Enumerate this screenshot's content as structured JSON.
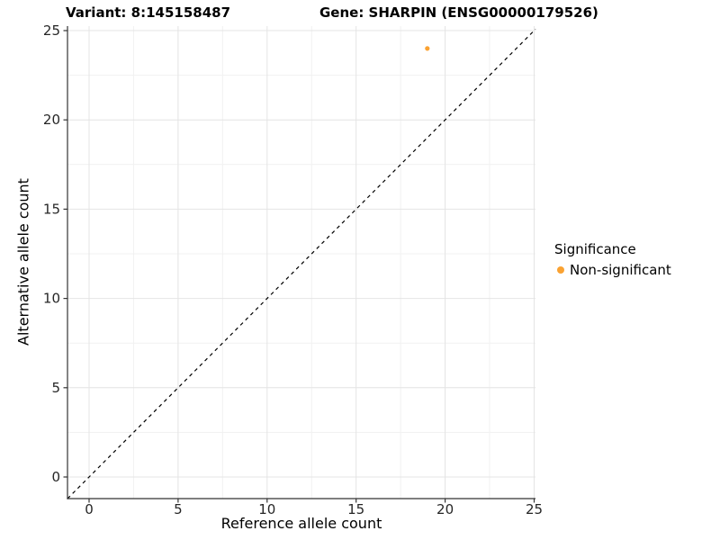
{
  "header": {
    "variant_title": "Variant: 8:145158487",
    "gene_title": "Gene: SHARPIN (ENSG00000179526)"
  },
  "legend": {
    "title": "Significance",
    "items": [
      {
        "label": "Non-significant",
        "color": "#FAA232",
        "marker": "circle-icon"
      }
    ]
  },
  "chart_data": {
    "type": "scatter",
    "title": "Variant: 8:145158487   |   Gene: SHARPIN (ENSG00000179526)",
    "xlabel": "Reference allele count",
    "ylabel": "Alternative allele count",
    "xlim": [
      -1.213,
      25.076
    ],
    "ylim": [
      -1.21,
      25.252
    ],
    "x_ticks": [
      0,
      5,
      10,
      15,
      20,
      25
    ],
    "y_ticks": [
      0,
      5,
      10,
      15,
      20,
      25
    ],
    "minor_grid_step": 2.5,
    "grid": "major+minor",
    "legend_position": "right",
    "series": [
      {
        "name": "Non-significant",
        "color": "#FAA232",
        "point_radius": 2.6,
        "points": [
          {
            "x": 19,
            "y": 24
          }
        ]
      }
    ],
    "reference_line": {
      "equation": "y = x",
      "style": "dashed",
      "color": "#000000"
    }
  },
  "style": {
    "background": "#FFFFFF",
    "axis_color": "#333333",
    "tick_label_color": "#262626",
    "grid_major_color": "#E4E4E4",
    "grid_minor_color": "#F1F1F1",
    "accent_orange": "#FAA232"
  }
}
